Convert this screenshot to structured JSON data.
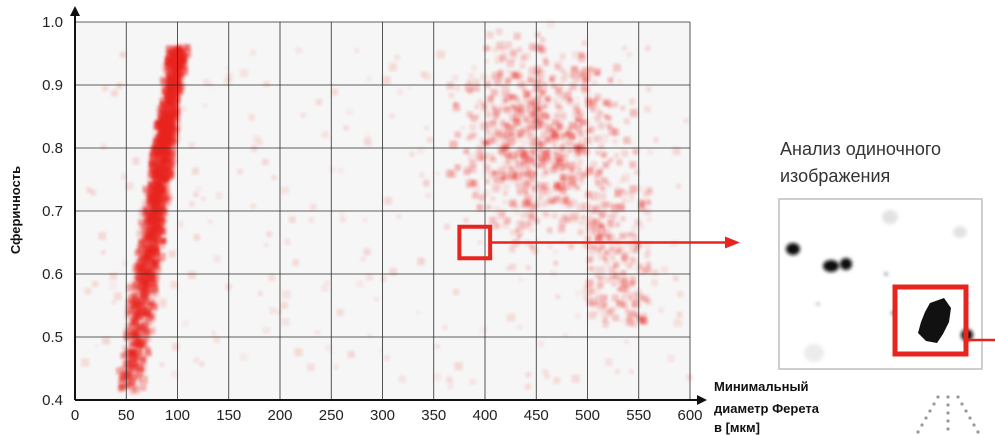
{
  "chart_data": {
    "type": "scatter",
    "title": "",
    "xlabel_lines": [
      "Минимальный",
      "диаметр Ферета",
      "в [мкм]"
    ],
    "ylabel": "Сферичность",
    "xlim": [
      0,
      600
    ],
    "ylim": [
      0.4,
      1.0
    ],
    "x_ticks": [
      "0",
      "50",
      "100",
      "150",
      "200",
      "250",
      "300",
      "350",
      "400",
      "450",
      "500",
      "550",
      "600"
    ],
    "y_ticks": [
      "0.4",
      "0.5",
      "0.6",
      "0.7",
      "0.8",
      "0.9",
      "1.0"
    ],
    "grid": true,
    "point_color": "#e8241f",
    "clusters": [
      {
        "name": "vertical",
        "x": [
          45,
          110
        ],
        "y": [
          0.41,
          0.96
        ]
      },
      {
        "name": "large",
        "x": [
          350,
          570
        ],
        "y": [
          0.55,
          0.95
        ]
      },
      {
        "name": "scatter",
        "x": [
          10,
          600
        ],
        "y": [
          0.42,
          0.96
        ]
      }
    ],
    "highlight": {
      "x": [
        375,
        405
      ],
      "y": [
        0.625,
        0.675
      ]
    }
  },
  "annotation": {
    "lines": [
      "Анализ одиночного",
      "изображения"
    ],
    "highlight_color": "#e8241f"
  }
}
